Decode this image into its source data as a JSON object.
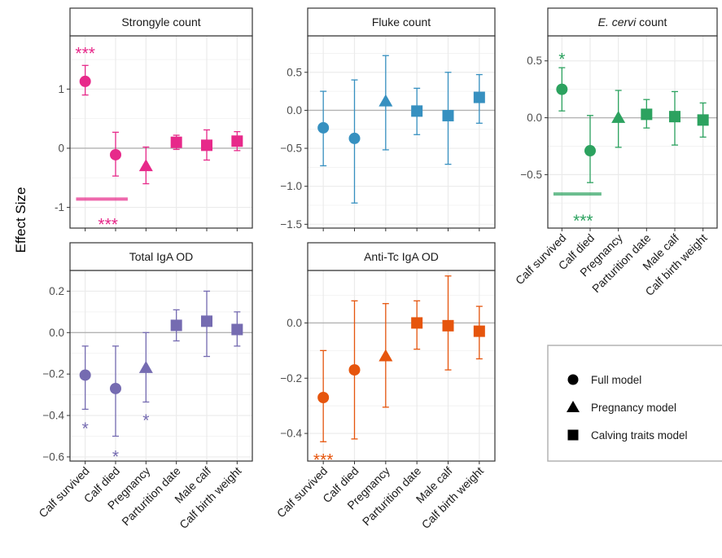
{
  "chart_data": {
    "type": "scatter",
    "ylabel": "Effect Size",
    "categories": [
      "Calf survived",
      "Calf died",
      "Pregnancy",
      "Parturition date",
      "Male calf",
      "Calf birth weight"
    ],
    "category_model": [
      "full",
      "full",
      "pregnancy",
      "calving",
      "calving",
      "calving"
    ],
    "legend": {
      "placement": "right",
      "entries": [
        {
          "key": "full",
          "label": "Full model",
          "shape": "circle"
        },
        {
          "key": "pregnancy",
          "label": "Pregnancy model",
          "shape": "triangle"
        },
        {
          "key": "calving",
          "label": "Calving  traits model",
          "shape": "square"
        }
      ]
    },
    "panels": [
      {
        "title": "Strongyle count",
        "color": "#e7298a",
        "ylim": [
          -1.35,
          1.9
        ],
        "yticks": [
          -1,
          0,
          1
        ],
        "estimates": [
          1.13,
          -0.11,
          -0.3,
          0.1,
          0.05,
          0.12
        ],
        "lower": [
          0.9,
          -0.47,
          -0.6,
          -0.02,
          -0.2,
          -0.04
        ],
        "upper": [
          1.4,
          0.27,
          0.02,
          0.22,
          0.31,
          0.28
        ],
        "annotations": [
          {
            "text": "***",
            "cat": 0,
            "y": 1.63
          },
          {
            "text": "***",
            "cat": 0.75,
            "y": -1.26
          }
        ],
        "comparison_bar": {
          "from": -0.3,
          "to": 1.4,
          "y": -0.86
        }
      },
      {
        "title": "Fluke count",
        "color": "#3690c0",
        "ylim": [
          -1.55,
          0.98
        ],
        "yticks": [
          -1.5,
          -1.0,
          -0.5,
          0.0,
          0.5
        ],
        "yticklabels": [
          "−1.5",
          "−1.0",
          "−0.5",
          "0.0",
          "0.5"
        ],
        "estimates": [
          -0.23,
          -0.37,
          0.12,
          -0.01,
          -0.07,
          0.17
        ],
        "lower": [
          -0.73,
          -1.22,
          -0.52,
          -0.32,
          -0.71,
          -0.17
        ],
        "upper": [
          0.25,
          0.4,
          0.72,
          0.29,
          0.5,
          0.47
        ],
        "annotations": [],
        "comparison_bar": null
      },
      {
        "title": "E. cervi count",
        "title_prefix_italic": "E. cervi",
        "title_suffix": " count",
        "color": "#2ca25f",
        "ylim": [
          -0.97,
          0.72
        ],
        "yticks": [
          -0.5,
          0.0,
          0.5
        ],
        "yticklabels": [
          "−0.5",
          "0.0",
          "0.5"
        ],
        "estimates": [
          0.25,
          -0.29,
          0.0,
          0.03,
          0.01,
          -0.02
        ],
        "lower": [
          0.06,
          -0.57,
          -0.26,
          -0.09,
          -0.24,
          -0.17
        ],
        "upper": [
          0.44,
          0.02,
          0.24,
          0.16,
          0.23,
          0.13
        ],
        "annotations": [
          {
            "text": "*",
            "cat": 0,
            "y": 0.53
          },
          {
            "text": "***",
            "cat": 0.75,
            "y": -0.89
          }
        ],
        "comparison_bar": {
          "from": -0.3,
          "to": 1.4,
          "y": -0.67
        }
      },
      {
        "title": "Total IgA OD",
        "color": "#756bb1",
        "ylim": [
          -0.62,
          0.3
        ],
        "yticks": [
          -0.6,
          -0.4,
          -0.2,
          0.0,
          0.2
        ],
        "yticklabels": [
          "−0.6",
          "−0.4",
          "−0.2",
          "0.0",
          "0.2"
        ],
        "estimates": [
          -0.205,
          -0.27,
          -0.17,
          0.035,
          0.055,
          0.015
        ],
        "lower": [
          -0.37,
          -0.5,
          -0.335,
          -0.04,
          -0.115,
          -0.065
        ],
        "upper": [
          -0.065,
          -0.065,
          0.0,
          0.11,
          0.2,
          0.1
        ],
        "annotations": [
          {
            "text": "*",
            "cat": 0,
            "y": -0.455
          },
          {
            "text": "*",
            "cat": 1,
            "y": -0.59
          },
          {
            "text": "*",
            "cat": 2,
            "y": -0.415
          }
        ],
        "comparison_bar": null
      },
      {
        "title": "Anti-Tc IgA OD",
        "color": "#e6550d",
        "ylim": [
          -0.5,
          0.19
        ],
        "yticks": [
          -0.4,
          -0.2,
          0.0
        ],
        "yticklabels": [
          "−0.4",
          "−0.2",
          "0.0"
        ],
        "estimates": [
          -0.27,
          -0.17,
          -0.12,
          0.0,
          -0.01,
          -0.03
        ],
        "lower": [
          -0.43,
          -0.42,
          -0.305,
          -0.095,
          -0.17,
          -0.13
        ],
        "upper": [
          -0.1,
          0.08,
          0.07,
          0.08,
          0.17,
          0.06
        ],
        "annotations": [
          {
            "text": "***",
            "cat": 0,
            "y": -0.49
          }
        ],
        "comparison_bar": null
      }
    ]
  }
}
